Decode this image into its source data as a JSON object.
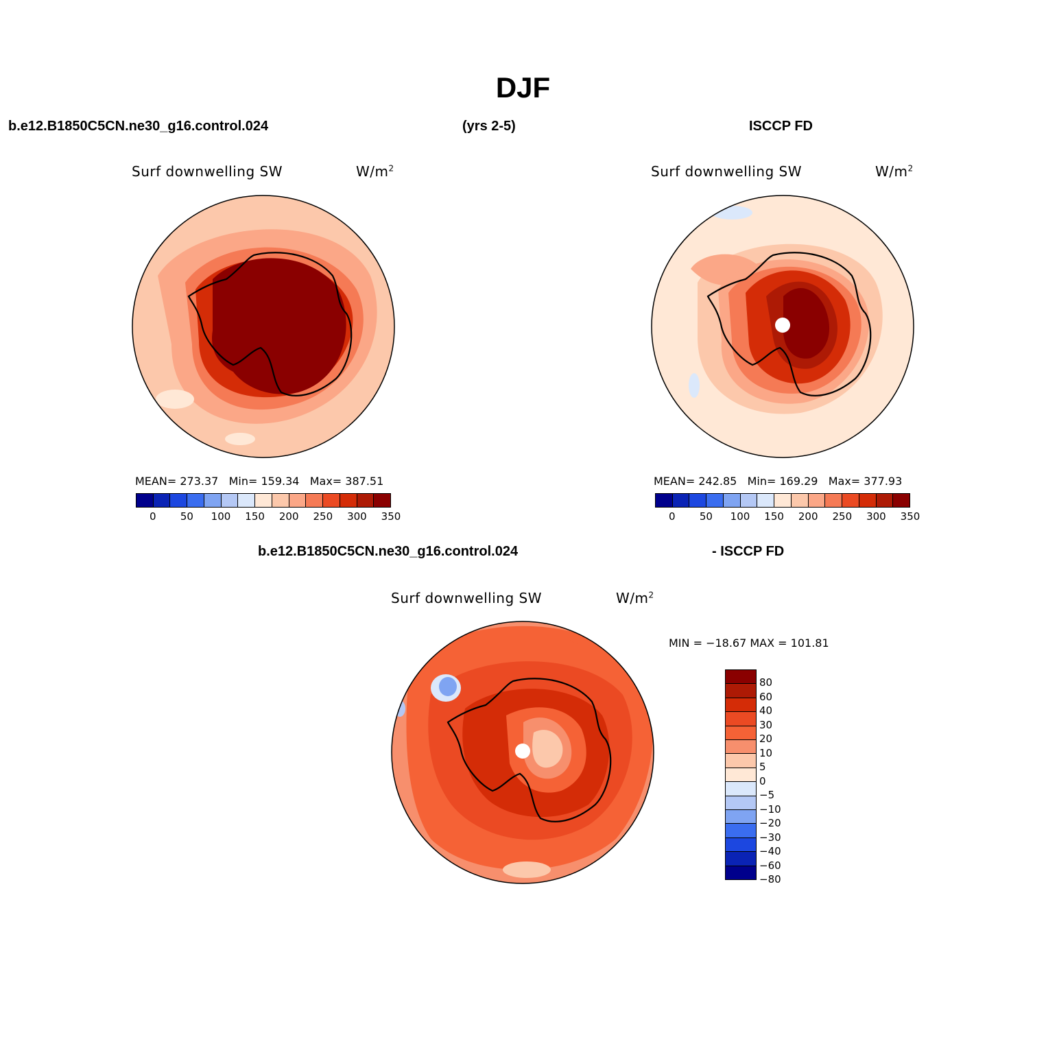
{
  "title": "DJF",
  "header": {
    "case": "b.e12.B1850C5CN.ne30_g16.control.024",
    "years": "(yrs 2-5)",
    "obs": "ISCCP FD"
  },
  "diff_header": {
    "case": "b.e12.B1850C5CN.ne30_g16.control.024",
    "obs": "- ISCCP FD"
  },
  "colors": {
    "abs": [
      "#00008c",
      "#0a23b5",
      "#1c47e0",
      "#3a6df0",
      "#7fa4f2",
      "#b4c8f5",
      "#dbe8fb",
      "#ffe8d6",
      "#fcc8ab",
      "#fba787",
      "#f57a55",
      "#eb4a23",
      "#d42c07",
      "#ad1a05",
      "#8a0000"
    ],
    "diff": [
      "#8a0000",
      "#ad1a05",
      "#d42c07",
      "#eb4a23",
      "#f56236",
      "#f78f6d",
      "#fcc8ab",
      "#ffe8d6",
      "#dbe8fb",
      "#b4c8f5",
      "#7fa4f2",
      "#3a6df0",
      "#1c47e0",
      "#0a23b5",
      "#00008c"
    ]
  },
  "chart_data": [
    {
      "type": "heatmap",
      "projection": "south-polar-stereographic",
      "panel": "model",
      "title": "Surf downwelling SW",
      "units": "W/m",
      "units_sup": "2",
      "stats": {
        "mean_label": "MEAN=",
        "mean": "273.37",
        "min_label": "Min=",
        "min": "159.34",
        "max_label": "Max=",
        "max": "387.51"
      },
      "colorbar_ticks": [
        "0",
        "50",
        "100",
        "150",
        "200",
        "250",
        "300",
        "350"
      ],
      "levels": [
        0,
        25,
        50,
        75,
        100,
        125,
        150,
        175,
        200,
        225,
        250,
        275,
        300,
        325,
        350
      ],
      "description_bands": [
        {
          "zone": "continent interior",
          "value": 370
        },
        {
          "zone": "coast",
          "value": 330
        },
        {
          "zone": "ring 1",
          "value": 290
        },
        {
          "zone": "ring 2",
          "value": 260
        },
        {
          "zone": "ring 3",
          "value": 235
        },
        {
          "zone": "outer ocean",
          "value": 210
        }
      ]
    },
    {
      "type": "heatmap",
      "projection": "south-polar-stereographic",
      "panel": "obs",
      "title": "Surf downwelling SW",
      "units": "W/m",
      "units_sup": "2",
      "stats": {
        "mean_label": "MEAN=",
        "mean": "242.85",
        "min_label": "Min=",
        "min": "169.29",
        "max_label": "Max=",
        "max": "377.93"
      },
      "colorbar_ticks": [
        "0",
        "50",
        "100",
        "150",
        "200",
        "250",
        "300",
        "350"
      ],
      "levels": [
        0,
        25,
        50,
        75,
        100,
        125,
        150,
        175,
        200,
        225,
        250,
        275,
        300,
        325,
        350
      ],
      "description_bands": [
        {
          "zone": "continent interior",
          "value": 355
        },
        {
          "zone": "coast",
          "value": 310
        },
        {
          "zone": "ring 1",
          "value": 270
        },
        {
          "zone": "ring 2",
          "value": 240
        },
        {
          "zone": "ring 3",
          "value": 215
        },
        {
          "zone": "outer ocean",
          "value": 190
        }
      ]
    },
    {
      "type": "heatmap",
      "projection": "south-polar-stereographic",
      "panel": "difference",
      "title": "Surf downwelling SW",
      "units": "W/m",
      "units_sup": "2",
      "stats": {
        "text": "MIN = −18.67 MAX = 101.81",
        "min": -18.67,
        "max": 101.81
      },
      "colorbar_ticks": [
        "80",
        "60",
        "40",
        "30",
        "20",
        "10",
        "5",
        "0",
        "−5",
        "−10",
        "−20",
        "−30",
        "−40",
        "−60",
        "−80"
      ],
      "levels": [
        80,
        60,
        40,
        30,
        20,
        10,
        5,
        0,
        -5,
        -10,
        -20,
        -30,
        -40,
        -60,
        -80
      ],
      "description_bands": [
        {
          "zone": "outer ocean",
          "value": 15
        },
        {
          "zone": "ring",
          "value": 35
        },
        {
          "zone": "coast",
          "value": 50
        },
        {
          "zone": "interior",
          "value": 15
        },
        {
          "zone": "Weddell/peninsula anomaly",
          "value": -15
        }
      ]
    }
  ]
}
